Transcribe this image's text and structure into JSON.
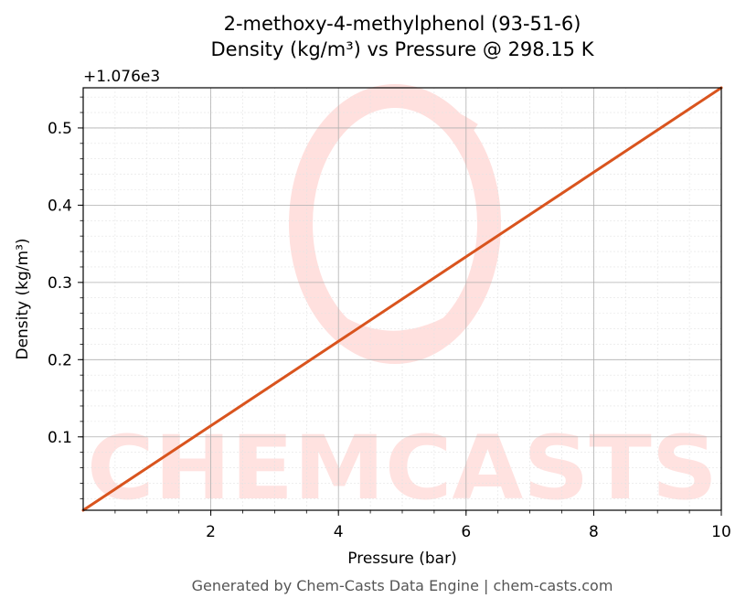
{
  "chart_data": {
    "type": "line",
    "title_line1": "2-methoxy-4-methylphenol (93-51-6)",
    "title_line2": "Density (kg/m³) vs Pressure @ 298.15 K",
    "xlabel": "Pressure (bar)",
    "ylabel": "Density (kg/m³)",
    "offset_label": "+1.076e3",
    "xlim": [
      0,
      10
    ],
    "ylim": [
      0.005,
      0.552
    ],
    "x_ticks": [
      2,
      4,
      6,
      8,
      10
    ],
    "x_tick_labels": [
      "2",
      "4",
      "6",
      "8",
      "10"
    ],
    "y_ticks": [
      0.1,
      0.2,
      0.3,
      0.4,
      0.5
    ],
    "y_tick_labels": [
      "0.1",
      "0.2",
      "0.3",
      "0.4",
      "0.5"
    ],
    "grid": true,
    "series": [
      {
        "color": "#d9541e",
        "x": [
          0,
          2,
          4,
          6,
          8,
          10
        ],
        "y": [
          0.005,
          0.1143,
          0.2237,
          0.3332,
          0.4426,
          0.552
        ]
      }
    ]
  },
  "watermark": {
    "text": "CHEMCASTS",
    "color": "#ffd9d6"
  },
  "footer": "Generated by Chem-Casts Data Engine | chem-casts.com"
}
